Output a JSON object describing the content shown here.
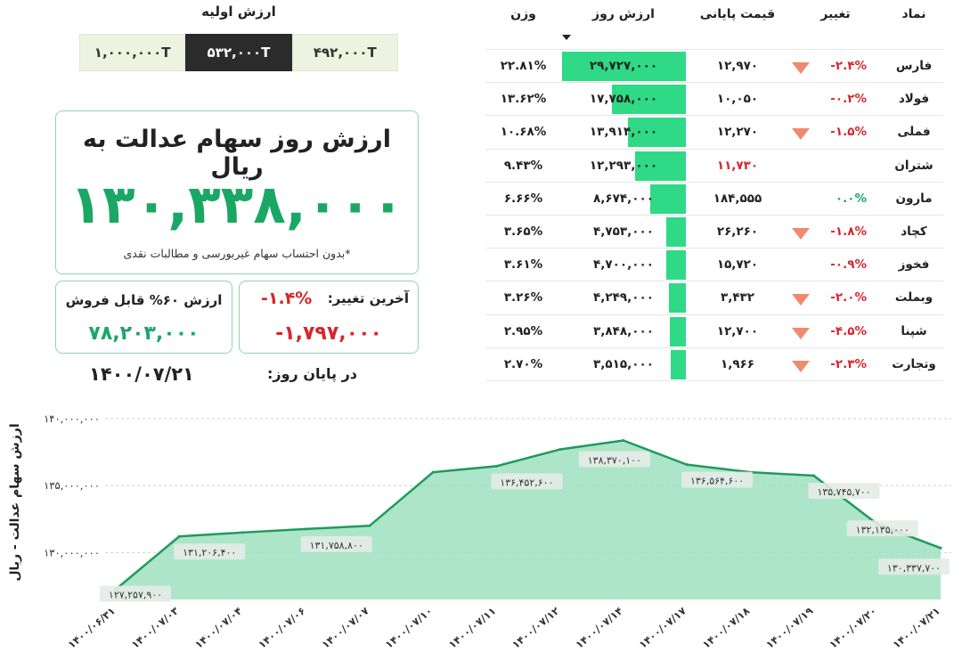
{
  "initial_value": {
    "title": "ارزش اولیه",
    "tabs": [
      {
        "label": "۱,۰۰۰,۰۰۰T",
        "active": false
      },
      {
        "label": "۵۳۲,۰۰۰T",
        "active": true
      },
      {
        "label": "۴۹۲,۰۰۰T",
        "active": false
      }
    ]
  },
  "summary": {
    "title": "ارزش روز سهام عدالت به ریال",
    "value": "۱۳۰,۳۳۸,۰۰۰",
    "note": "*بدون احتساب سهام غیربورسی و مطالبات نقدی",
    "sellable_title": "ارزش ۶۰% قابل فروش",
    "sellable_value": "۷۸,۲۰۳,۰۰۰",
    "last_change_label": "آخرین تغییر:",
    "last_change_pct": "-۱.۴%",
    "last_change_value": "-۱,۷۹۷,۰۰۰",
    "end_of_day_label": "در پایان روز:",
    "end_of_day_date": "۱۴۰۰/۰۷/۲۱"
  },
  "table": {
    "headers": {
      "symbol": "نماد",
      "change": "تغییر",
      "price": "قیمت پایانی",
      "value": "ارزش روز",
      "weight": "وزن"
    },
    "rows": [
      {
        "symbol": "فارس",
        "change": "-۲.۴%",
        "change_dir": "down",
        "triangle": true,
        "price": "۱۲,۹۷۰",
        "price_color": "normal",
        "value": "۲۹,۷۲۷,۰۰۰",
        "bar_fraction": 1.0,
        "weight": "۲۲.۸۱%"
      },
      {
        "symbol": "فولاد",
        "change": "-۰.۲%",
        "change_dir": "down",
        "triangle": false,
        "price": "۱۰,۰۵۰",
        "price_color": "normal",
        "value": "۱۷,۷۵۸,۰۰۰",
        "bar_fraction": 0.6,
        "weight": "۱۳.۶۲%"
      },
      {
        "symbol": "فملی",
        "change": "-۱.۵%",
        "change_dir": "down",
        "triangle": true,
        "price": "۱۲,۲۷۰",
        "price_color": "normal",
        "value": "۱۳,۹۱۴,۰۰۰",
        "bar_fraction": 0.47,
        "weight": "۱۰.۶۸%"
      },
      {
        "symbol": "شتران",
        "change": "",
        "change_dir": "none",
        "triangle": false,
        "price": "۱۱,۷۳۰",
        "price_color": "red",
        "value": "۱۲,۲۹۳,۰۰۰",
        "bar_fraction": 0.41,
        "weight": "۹.۴۳%"
      },
      {
        "symbol": "مارون",
        "change": "۰.۰%",
        "change_dir": "up",
        "triangle": false,
        "price": "۱۸۴,۵۵۵",
        "price_color": "normal",
        "value": "۸,۶۷۴,۰۰۰",
        "bar_fraction": 0.29,
        "weight": "۶.۶۶%"
      },
      {
        "symbol": "کچاد",
        "change": "-۱.۸%",
        "change_dir": "down",
        "triangle": true,
        "price": "۲۶,۲۶۰",
        "price_color": "normal",
        "value": "۴,۷۵۳,۰۰۰",
        "bar_fraction": 0.16,
        "weight": "۳.۶۵%"
      },
      {
        "symbol": "فخوز",
        "change": "-۰.۹%",
        "change_dir": "down",
        "triangle": false,
        "price": "۱۵,۷۲۰",
        "price_color": "normal",
        "value": "۴,۷۰۰,۰۰۰",
        "bar_fraction": 0.16,
        "weight": "۳.۶۱%"
      },
      {
        "symbol": "وبملت",
        "change": "-۲.۰%",
        "change_dir": "down",
        "triangle": true,
        "price": "۳,۴۳۲",
        "price_color": "normal",
        "value": "۴,۲۴۹,۰۰۰",
        "bar_fraction": 0.14,
        "weight": "۳.۲۶%"
      },
      {
        "symbol": "شپنا",
        "change": "-۴.۵%",
        "change_dir": "down",
        "triangle": true,
        "price": "۱۲,۷۰۰",
        "price_color": "normal",
        "value": "۳,۸۴۸,۰۰۰",
        "bar_fraction": 0.13,
        "weight": "۲.۹۵%"
      },
      {
        "symbol": "وتجارت",
        "change": "-۲.۳%",
        "change_dir": "down",
        "triangle": true,
        "price": "۱,۹۶۶",
        "price_color": "normal",
        "value": "۳,۵۱۵,۰۰۰",
        "bar_fraction": 0.12,
        "weight": "۲.۷۰%"
      }
    ]
  },
  "colors": {
    "accent_green": "#1aa765",
    "bar_green": "#2fd986",
    "area_fill": "#9fe0c0",
    "line": "#1f9a5e",
    "down_red": "#d7262c"
  },
  "chart_data": {
    "type": "area",
    "ylabel": "ارزش سهام عدالت - ریال",
    "ylim": [
      126500000,
      140000000
    ],
    "yticks": [
      130000000,
      135000000,
      140000000
    ],
    "ytick_labels": [
      "۱۳۰,۰۰۰,۰۰۰",
      "۱۳۵,۰۰۰,۰۰۰",
      "۱۴۰,۰۰۰,۰۰۰"
    ],
    "categories": [
      "۱۴۰۰/۰۶/۳۱",
      "۱۴۰۰/۰۷/۰۳",
      "۱۴۰۰/۰۷/۰۴",
      "۱۴۰۰/۰۷/۰۶",
      "۱۴۰۰/۰۷/۰۷",
      "۱۴۰۰/۰۷/۱۰",
      "۱۴۰۰/۰۷/۱۱",
      "۱۴۰۰/۰۷/۱۲",
      "۱۴۰۰/۰۷/۱۴",
      "۱۴۰۰/۰۷/۱۷",
      "۱۴۰۰/۰۷/۱۸",
      "۱۴۰۰/۰۷/۱۹",
      "۱۴۰۰/۰۷/۲۰",
      "۱۴۰۰/۰۷/۲۱"
    ],
    "values": [
      127257900,
      131206400,
      131500000,
      131758800,
      132000000,
      136000000,
      136452600,
      137700000,
      138370100,
      136564600,
      136000000,
      135745700,
      132135000,
      130337700
    ],
    "point_labels": [
      "۱۲۷,۲۵۷,۹۰۰",
      "۱۳۱,۲۰۶,۴۰۰",
      "",
      "۱۳۱,۷۵۸,۸۰۰",
      "",
      "",
      "۱۳۶,۴۵۲,۶۰۰",
      "",
      "۱۳۸,۳۷۰,۱۰۰",
      "۱۳۶,۵۶۴,۶۰۰",
      "",
      "۱۳۵,۷۴۵,۷۰۰",
      "۱۳۲,۱۳۵,۰۰۰",
      "۱۳۰,۳۳۷,۷۰۰"
    ],
    "grid": "horizontal-dashed"
  }
}
